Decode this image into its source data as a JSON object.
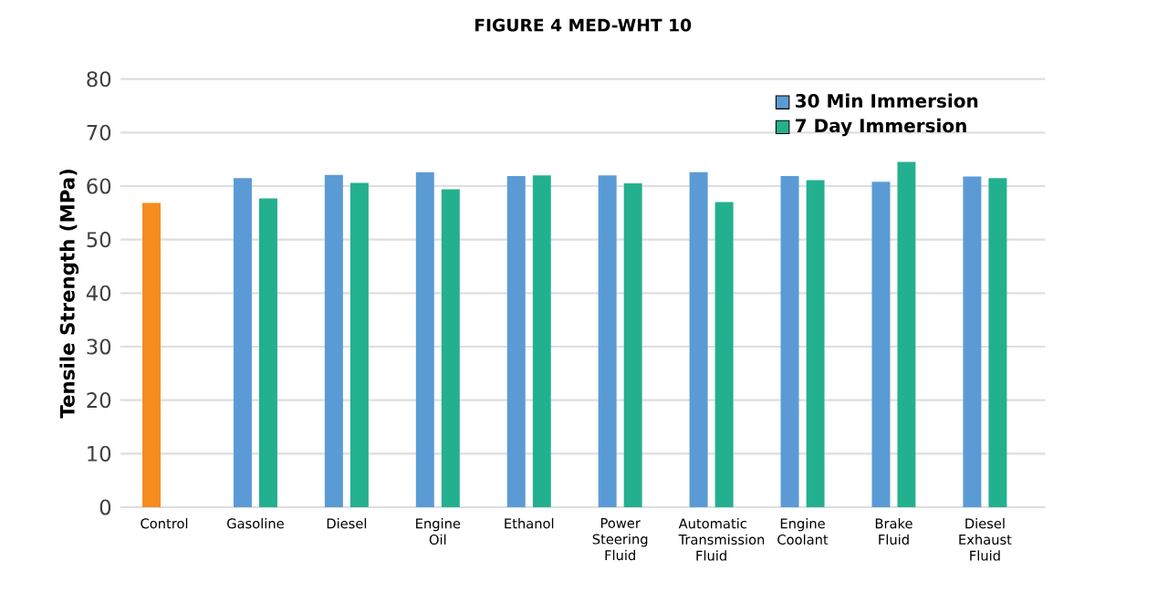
{
  "chart_data": {
    "type": "bar",
    "title": "FIGURE 4 MED-WHT 10",
    "ylabel": "Tensile Strength (MPa)",
    "categories": [
      "Control",
      "Gasoline",
      "Diesel",
      "Engine Oil",
      "Ethanol",
      "Power Steering Fluid",
      "Automatic Transmission Fluid",
      "Engine Coolant",
      "Brake Fluid",
      "Diesel Exhaust Fluid"
    ],
    "series": [
      {
        "name": "30 Min Immersion",
        "color": "#5b9bd5",
        "colors": [
          "#f58c1f",
          "#5b9bd5",
          "#5b9bd5",
          "#5b9bd5",
          "#5b9bd5",
          "#5b9bd5",
          "#5b9bd5",
          "#5b9bd5",
          "#5b9bd5",
          "#5b9bd5"
        ],
        "values": [
          56.9,
          61.5,
          62.1,
          62.6,
          61.9,
          62.0,
          62.6,
          61.9,
          60.8,
          61.8
        ]
      },
      {
        "name": "7 Day Immersion",
        "color": "#23b08f",
        "values": [
          null,
          57.7,
          60.6,
          59.4,
          62.0,
          60.5,
          57.0,
          61.1,
          64.5,
          61.5
        ]
      }
    ],
    "ylim": [
      0,
      80
    ],
    "yticks": [
      0,
      10,
      20,
      30,
      40,
      50,
      60,
      70,
      80
    ],
    "grid": "y",
    "legend": "top right"
  }
}
